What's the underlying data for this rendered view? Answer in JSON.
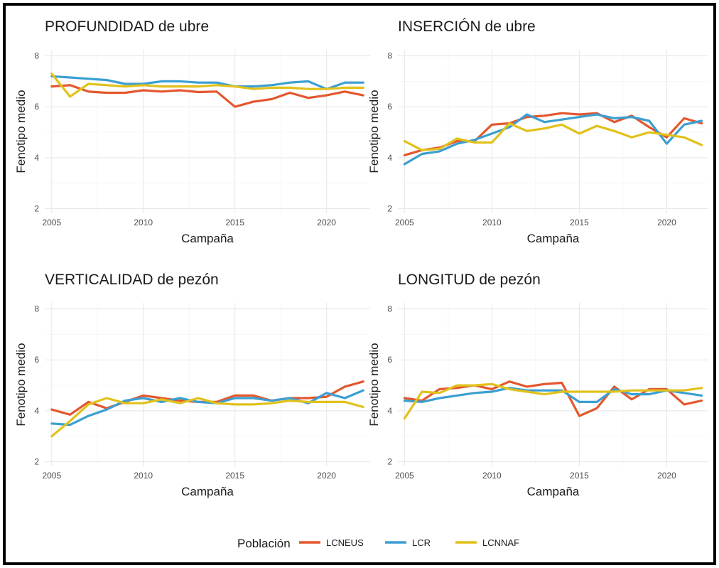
{
  "legend": {
    "title": "Población"
  },
  "colors": {
    "LCNEUS": "#e4572e",
    "LCR": "#3b9fd1",
    "LCNNAF": "#e1c11b"
  },
  "chart_data": [
    {
      "type": "line",
      "title": "PROFUNDIDAD de ubre",
      "xlabel": "Campaña",
      "ylabel": "Fenotipo medio",
      "xlim": [
        2005,
        2022
      ],
      "ylim": [
        2,
        8
      ],
      "xticks": [
        2005,
        2010,
        2015,
        2020
      ],
      "yticks": [
        2,
        4,
        6,
        8
      ],
      "grid": true,
      "x": [
        2005,
        2006,
        2007,
        2008,
        2009,
        2010,
        2011,
        2012,
        2013,
        2014,
        2015,
        2016,
        2017,
        2018,
        2019,
        2020,
        2021,
        2022
      ],
      "series": [
        {
          "name": "LCNEUS",
          "values": [
            6.8,
            6.85,
            6.6,
            6.55,
            6.55,
            6.65,
            6.6,
            6.65,
            6.58,
            6.6,
            6.0,
            6.2,
            6.3,
            6.55,
            6.35,
            6.45,
            6.6,
            6.45
          ]
        },
        {
          "name": "LCR",
          "values": [
            7.2,
            7.15,
            7.1,
            7.05,
            6.9,
            6.9,
            7.0,
            7.0,
            6.95,
            6.95,
            6.8,
            6.8,
            6.85,
            6.95,
            7.0,
            6.7,
            6.95,
            6.95
          ]
        },
        {
          "name": "LCNNAF",
          "values": [
            7.3,
            6.4,
            6.9,
            6.85,
            6.8,
            6.85,
            6.8,
            6.8,
            6.8,
            6.85,
            6.8,
            6.7,
            6.75,
            6.75,
            6.7,
            6.7,
            6.75,
            6.75
          ]
        }
      ]
    },
    {
      "type": "line",
      "title": "INSERCIÓN de ubre",
      "xlabel": "Campaña",
      "ylabel": "Fenotipo medio",
      "xlim": [
        2005,
        2022
      ],
      "ylim": [
        2,
        8
      ],
      "xticks": [
        2005,
        2010,
        2015,
        2020
      ],
      "yticks": [
        2,
        4,
        6,
        8
      ],
      "grid": true,
      "x": [
        2005,
        2006,
        2007,
        2008,
        2009,
        2010,
        2011,
        2012,
        2013,
        2014,
        2015,
        2016,
        2017,
        2018,
        2019,
        2020,
        2021,
        2022
      ],
      "series": [
        {
          "name": "LCNEUS",
          "values": [
            4.1,
            4.3,
            4.4,
            4.65,
            4.65,
            5.3,
            5.35,
            5.6,
            5.65,
            5.75,
            5.7,
            5.75,
            5.4,
            5.65,
            5.2,
            4.8,
            5.55,
            5.35
          ]
        },
        {
          "name": "LCR",
          "values": [
            3.75,
            4.15,
            4.25,
            4.55,
            4.7,
            4.95,
            5.2,
            5.7,
            5.4,
            5.5,
            5.6,
            5.7,
            5.55,
            5.6,
            5.45,
            4.55,
            5.3,
            5.45
          ]
        },
        {
          "name": "LCNNAF",
          "values": [
            4.65,
            4.3,
            4.35,
            4.75,
            4.6,
            4.6,
            5.35,
            5.05,
            5.15,
            5.3,
            4.95,
            5.25,
            5.05,
            4.8,
            5.0,
            4.9,
            4.8,
            4.5
          ]
        }
      ]
    },
    {
      "type": "line",
      "title": "VERTICALIDAD de pezón",
      "xlabel": "Campaña",
      "ylabel": "Fenotipo medio",
      "xlim": [
        2005,
        2022
      ],
      "ylim": [
        2,
        8
      ],
      "xticks": [
        2005,
        2010,
        2015,
        2020
      ],
      "yticks": [
        2,
        4,
        6,
        8
      ],
      "grid": true,
      "x": [
        2005,
        2006,
        2007,
        2008,
        2009,
        2010,
        2011,
        2012,
        2013,
        2014,
        2015,
        2016,
        2017,
        2018,
        2019,
        2020,
        2021,
        2022
      ],
      "series": [
        {
          "name": "LCNEUS",
          "values": [
            4.05,
            3.85,
            4.35,
            4.1,
            4.35,
            4.6,
            4.5,
            4.4,
            4.35,
            4.35,
            4.6,
            4.6,
            4.4,
            4.5,
            4.5,
            4.55,
            4.95,
            5.15
          ]
        },
        {
          "name": "LCR",
          "values": [
            3.5,
            3.45,
            3.8,
            4.05,
            4.4,
            4.5,
            4.35,
            4.5,
            4.35,
            4.3,
            4.5,
            4.5,
            4.4,
            4.5,
            4.3,
            4.7,
            4.5,
            4.8
          ]
        },
        {
          "name": "LCNNAF",
          "values": [
            3.0,
            3.6,
            4.25,
            4.5,
            4.3,
            4.3,
            4.45,
            4.3,
            4.5,
            4.3,
            4.25,
            4.25,
            4.3,
            4.4,
            4.35,
            4.35,
            4.35,
            4.15
          ]
        }
      ]
    },
    {
      "type": "line",
      "title": "LONGITUD de pezón",
      "xlabel": "Campaña",
      "ylabel": "Fenotipo medio",
      "xlim": [
        2005,
        2022
      ],
      "ylim": [
        2,
        8
      ],
      "xticks": [
        2005,
        2010,
        2015,
        2020
      ],
      "yticks": [
        2,
        4,
        6,
        8
      ],
      "grid": true,
      "x": [
        2005,
        2006,
        2007,
        2008,
        2009,
        2010,
        2011,
        2012,
        2013,
        2014,
        2015,
        2016,
        2017,
        2018,
        2019,
        2020,
        2021,
        2022
      ],
      "series": [
        {
          "name": "LCNEUS",
          "values": [
            4.5,
            4.4,
            4.85,
            4.9,
            5.0,
            4.85,
            5.15,
            4.95,
            5.05,
            5.1,
            3.8,
            4.1,
            4.95,
            4.45,
            4.85,
            4.85,
            4.25,
            4.4
          ]
        },
        {
          "name": "LCR",
          "values": [
            4.4,
            4.35,
            4.5,
            4.6,
            4.7,
            4.75,
            4.9,
            4.8,
            4.8,
            4.8,
            4.35,
            4.35,
            4.85,
            4.65,
            4.65,
            4.8,
            4.7,
            4.6
          ]
        },
        {
          "name": "LCNNAF",
          "values": [
            3.7,
            4.75,
            4.7,
            5.0,
            5.0,
            5.05,
            4.85,
            4.75,
            4.65,
            4.75,
            4.75,
            4.75,
            4.75,
            4.8,
            4.8,
            4.8,
            4.8,
            4.9
          ]
        }
      ]
    }
  ]
}
